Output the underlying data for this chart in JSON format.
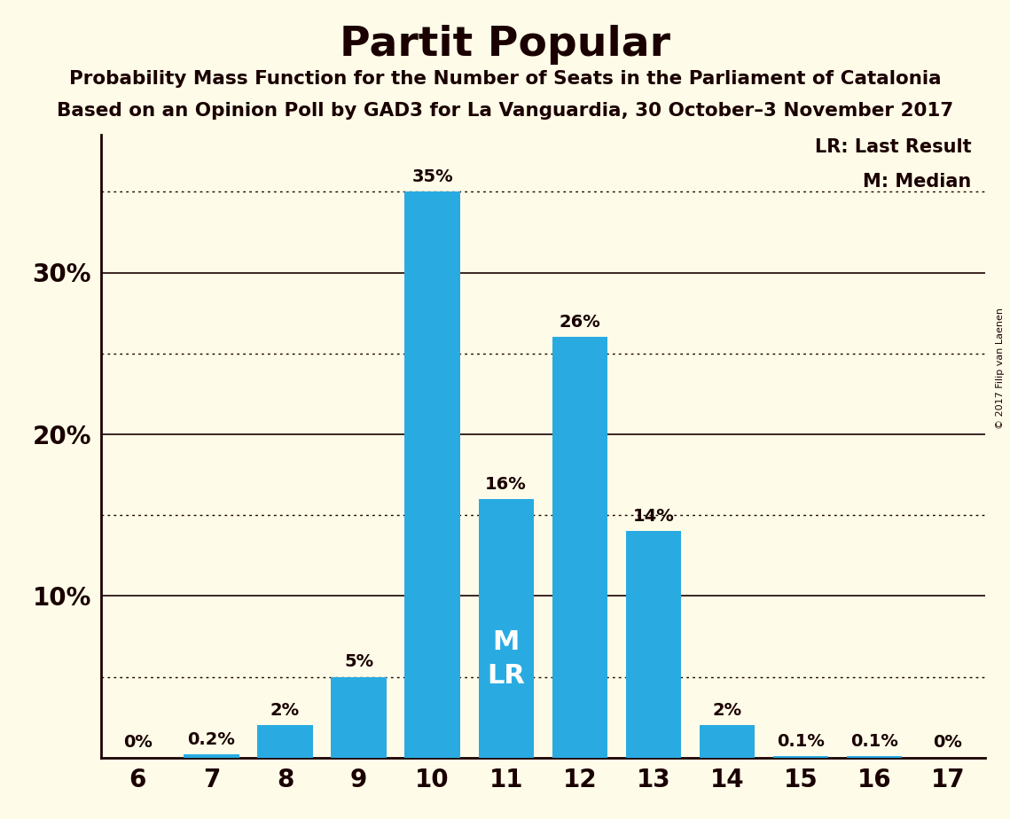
{
  "title": "Partit Popular",
  "subtitle1": "Probability Mass Function for the Number of Seats in the Parliament of Catalonia",
  "subtitle2": "Based on an Opinion Poll by GAD3 for La Vanguardia, 30 October–3 November 2017",
  "copyright": "© 2017 Filip van Laenen",
  "seats": [
    6,
    7,
    8,
    9,
    10,
    11,
    12,
    13,
    14,
    15,
    16,
    17
  ],
  "values": [
    0.0,
    0.2,
    2.0,
    5.0,
    35.0,
    16.0,
    26.0,
    14.0,
    2.0,
    0.1,
    0.1,
    0.0
  ],
  "bar_color": "#29ABE2",
  "background_color": "#FEFCE8",
  "text_color": "#1A0000",
  "median_seat": 11,
  "lr_seat": 11,
  "yticks": [
    0,
    10,
    20,
    30
  ],
  "dotted_lines": [
    5,
    15,
    25,
    35
  ],
  "ylim": [
    0,
    38.5
  ],
  "legend_lr": "LR: Last Result",
  "legend_m": "M: Median",
  "bar_width": 0.75
}
